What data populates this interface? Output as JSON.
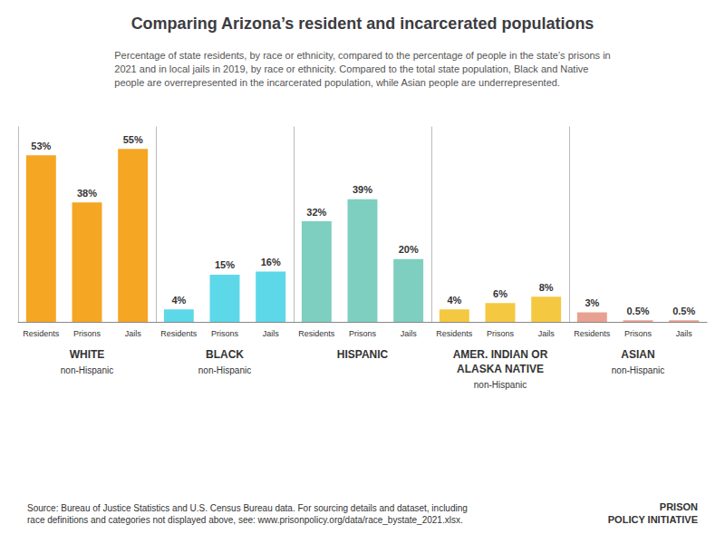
{
  "title": "Comparing Arizona’s resident and incarcerated populations",
  "subtitle": "Percentage of state residents, by race or ethnicity, compared to the percentage of people in the state’s prisons in\n2021 and in local jails in 2019, by race or ethnicity. Compared to the total state population, Black and Native\npeople are overrepresented in the incarcerated population, while Asian people are underrepresented.",
  "annotations": [
    "Source: Bureau of Justice Statistics and U.S. Census Bureau data. For sourcing details and dataset, including\nrace definitions and categories not displayed above, see: www.prisonpolicy.org/data/race_bystate_2021.xlsx.",
    "PRISON\nPOLICY INITIATIVE"
  ],
  "chart_data": [
    {
      "type": "bar",
      "title": "WHITE",
      "subtitle": "non-Hispanic",
      "categories": [
        "Residents",
        "Prisons",
        "Jails"
      ],
      "values": [
        53,
        38,
        55
      ],
      "value_labels": [
        "53%",
        "38%",
        "55%"
      ],
      "colors": [
        "#f5a623",
        "#f5a623",
        "#f5a623"
      ],
      "ylim": [
        0,
        62
      ],
      "tick_labels": "x",
      "data_labels": true,
      "grid": false
    },
    {
      "type": "bar",
      "title": "BLACK",
      "subtitle": "non-Hispanic",
      "categories": [
        "Residents",
        "Prisons",
        "Jails"
      ],
      "values": [
        4,
        15,
        16
      ],
      "value_labels": [
        "4%",
        "15%",
        "16%"
      ],
      "colors": [
        "#5dd8e8",
        "#5dd8e8",
        "#5dd8e8"
      ],
      "ylim": [
        0,
        62
      ],
      "tick_labels": "x",
      "data_labels": true,
      "grid": false
    },
    {
      "type": "bar",
      "title": "HISPANIC",
      "categories": [
        "Residents",
        "Prisons",
        "Jails"
      ],
      "values": [
        32,
        39,
        20
      ],
      "value_labels": [
        "32%",
        "39%",
        "20%"
      ],
      "colors": [
        "#7ecfc0",
        "#7ecfc0",
        "#7ecfc0"
      ],
      "ylim": [
        0,
        62
      ],
      "tick_labels": "x",
      "data_labels": true,
      "grid": false
    },
    {
      "type": "bar",
      "title": "AMER. INDIAN OR\nALASKA NATIVE",
      "subtitle": "non-Hispanic",
      "categories": [
        "Residents",
        "Prisons",
        "Jails"
      ],
      "values": [
        4,
        6,
        8
      ],
      "value_labels": [
        "4%",
        "6%",
        "8%"
      ],
      "colors": [
        "#f5c842",
        "#f5c842",
        "#f5c842"
      ],
      "ylim": [
        0,
        62
      ],
      "tick_labels": "x",
      "data_labels": true,
      "grid": false
    },
    {
      "type": "bar",
      "title": "ASIAN",
      "subtitle": "non-Hispanic",
      "categories": [
        "Residents",
        "Prisons",
        "Jails"
      ],
      "values": [
        3,
        0.5,
        0.5
      ],
      "value_labels": [
        "3%",
        "0.5%",
        "0.5%"
      ],
      "colors": [
        "#e8a090",
        "#e8a090",
        "#e8a090"
      ],
      "ylim": [
        0,
        62
      ],
      "tick_labels": "x",
      "data_labels": true,
      "grid": false
    }
  ]
}
